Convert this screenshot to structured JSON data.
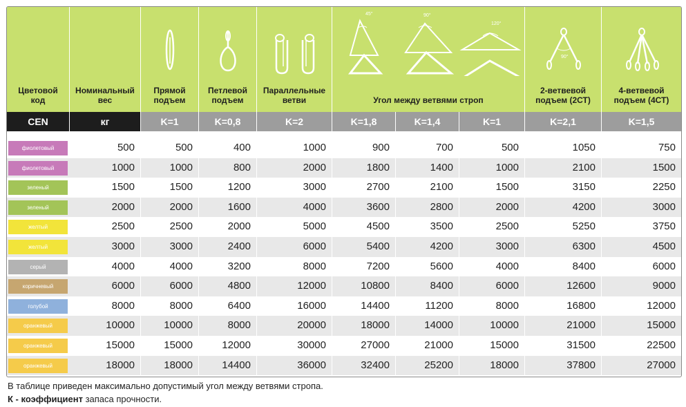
{
  "headers": {
    "color_code": "Цветовой\nкод",
    "nominal_weight": "Номинальный\nвес",
    "straight_lift": "Прямой\nподъем",
    "loop_lift": "Петлевой\nподъем",
    "parallel": "Параллельные\nветви",
    "angle_between": "Угол между ветвями строп",
    "two_branch": "2-ветвевой\nподъем (2СТ)",
    "four_branch": "4-ветвевой\nподъем (4СТ)"
  },
  "angle_labels": {
    "a45": "45°",
    "a90": "90°",
    "a120": "120°",
    "two_branch_angle": "90°"
  },
  "k_row": [
    "CEN",
    "кг",
    "K=1",
    "K=0,8",
    "K=2",
    "K=1,8",
    "K=1,4",
    "K=1",
    "K=2,1",
    "K=1,5"
  ],
  "rows": [
    {
      "color_name": "фиолетовый",
      "color": "#c77ab9",
      "values": [
        "500",
        "500",
        "400",
        "1000",
        "900",
        "700",
        "500",
        "1050",
        "750"
      ]
    },
    {
      "color_name": "фиолетовый",
      "color": "#c77ab9",
      "values": [
        "1000",
        "1000",
        "800",
        "2000",
        "1800",
        "1400",
        "1000",
        "2100",
        "1500"
      ]
    },
    {
      "color_name": "зеленый",
      "color": "#a3c458",
      "values": [
        "1500",
        "1500",
        "1200",
        "3000",
        "2700",
        "2100",
        "1500",
        "3150",
        "2250"
      ]
    },
    {
      "color_name": "зеленый",
      "color": "#a3c458",
      "values": [
        "2000",
        "2000",
        "1600",
        "4000",
        "3600",
        "2800",
        "2000",
        "4200",
        "3000"
      ]
    },
    {
      "color_name": "желтый",
      "color": "#f2e43a",
      "values": [
        "2500",
        "2500",
        "2000",
        "5000",
        "4500",
        "3500",
        "2500",
        "5250",
        "3750"
      ]
    },
    {
      "color_name": "желтый",
      "color": "#f2e43a",
      "values": [
        "3000",
        "3000",
        "2400",
        "6000",
        "5400",
        "4200",
        "3000",
        "6300",
        "4500"
      ]
    },
    {
      "color_name": "серый",
      "color": "#b3b3b3",
      "values": [
        "4000",
        "4000",
        "3200",
        "8000",
        "7200",
        "5600",
        "4000",
        "8400",
        "6000"
      ]
    },
    {
      "color_name": "коричневый",
      "color": "#c6a670",
      "values": [
        "6000",
        "6000",
        "4800",
        "12000",
        "10800",
        "8400",
        "6000",
        "12600",
        "9000"
      ]
    },
    {
      "color_name": "голубой",
      "color": "#8fb1dc",
      "values": [
        "8000",
        "8000",
        "6400",
        "16000",
        "14400",
        "11200",
        "8000",
        "16800",
        "12000"
      ]
    },
    {
      "color_name": "оранжевый",
      "color": "#f5cb4a",
      "values": [
        "10000",
        "10000",
        "8000",
        "20000",
        "18000",
        "14000",
        "10000",
        "21000",
        "15000"
      ]
    },
    {
      "color_name": "оранжевый",
      "color": "#f5cb4a",
      "values": [
        "15000",
        "15000",
        "12000",
        "30000",
        "27000",
        "21000",
        "15000",
        "31500",
        "22500"
      ]
    },
    {
      "color_name": "оранжевый",
      "color": "#f5cb4a",
      "values": [
        "18000",
        "18000",
        "14400",
        "36000",
        "32400",
        "25200",
        "18000",
        "37800",
        "27000"
      ]
    }
  ],
  "notes": {
    "line1": "В таблице приведен максимально допустимый угол между ветвями стропа.",
    "line2_bold": "К - коэффициент",
    "line2_rest": " запаса прочности."
  },
  "colors": {
    "header_bg": "#c8e06e",
    "k_dark": "#1d1d1d",
    "k_gray": "#9d9d9d",
    "row_alt": "#e8e8e8"
  }
}
